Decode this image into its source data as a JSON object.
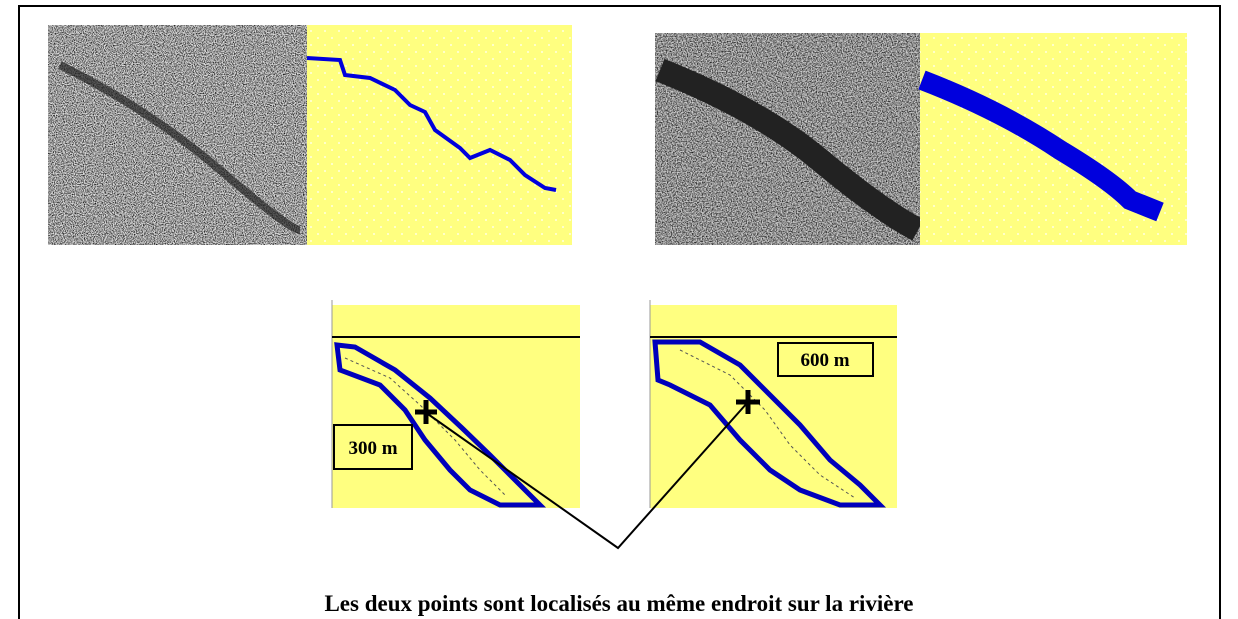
{
  "labels": {
    "left_distance": "300 m",
    "right_distance": "600 m"
  },
  "caption": "Les deux points sont localisés au même endroit sur la rivière"
}
